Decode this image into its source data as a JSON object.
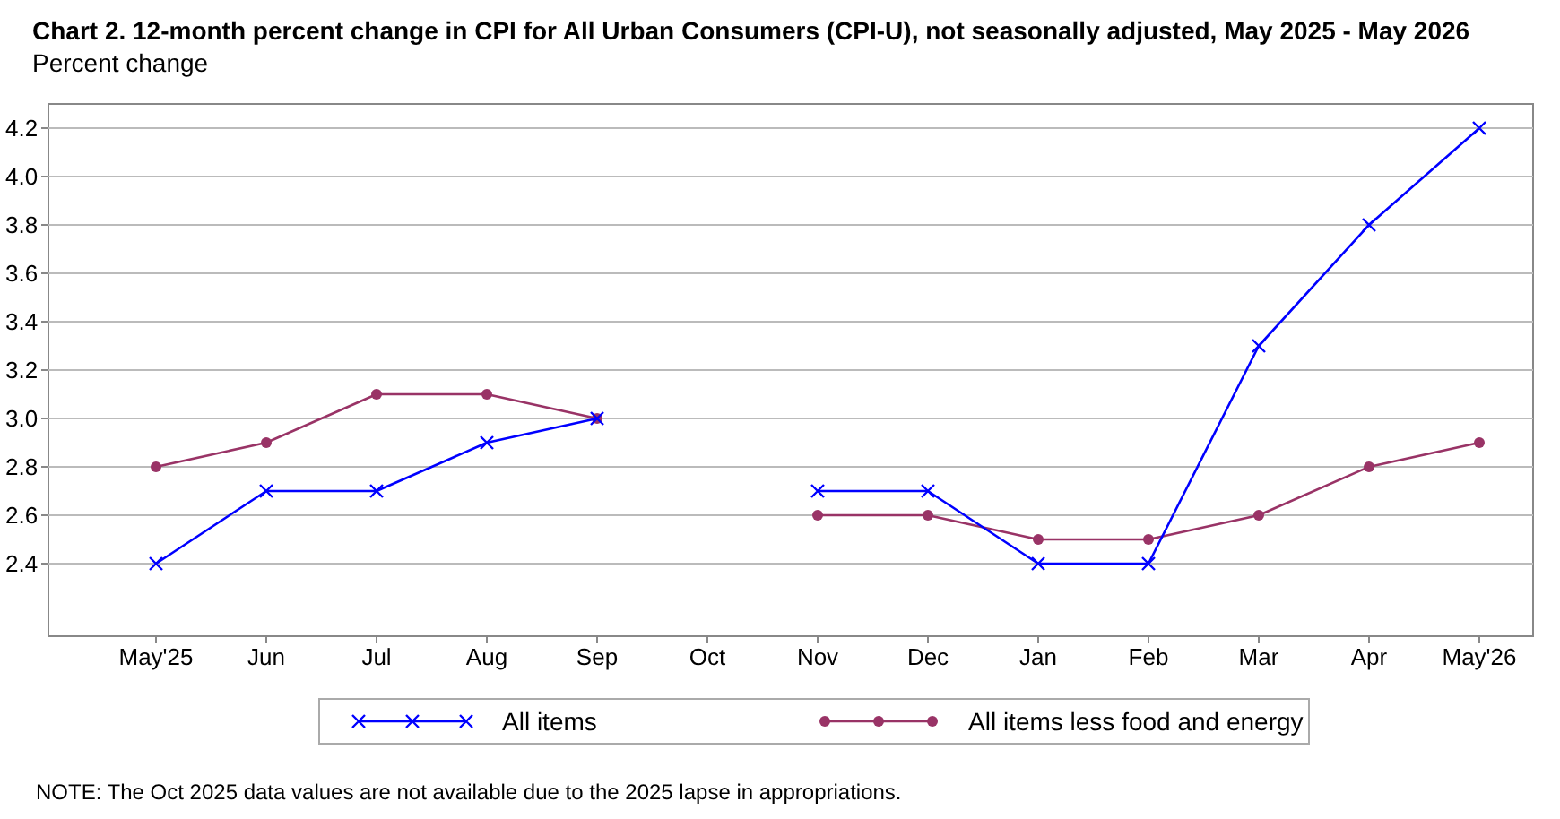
{
  "chart_data": {
    "type": "line",
    "title": "Chart 2. 12-month percent change in CPI for All Urban Consumers (CPI-U), not seasonally adjusted, May 2025 - May 2026",
    "ylabel": "Percent change",
    "categories": [
      "May'25",
      "Jun",
      "Jul",
      "Aug",
      "Sep",
      "Oct",
      "Nov",
      "Dec",
      "Jan",
      "Feb",
      "Mar",
      "Apr",
      "May'26"
    ],
    "series": [
      {
        "name": "All items",
        "color": "#0000ff",
        "marker": "cross",
        "values": [
          2.4,
          2.7,
          2.7,
          2.9,
          3.0,
          null,
          2.7,
          2.7,
          2.4,
          2.4,
          3.3,
          3.8,
          4.2
        ]
      },
      {
        "name": "All items less food and energy",
        "color": "#993366",
        "marker": "circle",
        "values": [
          2.8,
          2.9,
          3.1,
          3.1,
          3.0,
          null,
          2.6,
          2.6,
          2.5,
          2.5,
          2.6,
          2.8,
          2.9
        ]
      }
    ],
    "ylim": [
      2.1,
      4.3
    ],
    "yticks": [
      {
        "value": 2.4,
        "label": "2.4"
      },
      {
        "value": 2.6,
        "label": "2.6"
      },
      {
        "value": 2.8,
        "label": "2.8"
      },
      {
        "value": 3.0,
        "label": "3.0"
      },
      {
        "value": 3.2,
        "label": "3.2"
      },
      {
        "value": 3.4,
        "label": "3.4"
      },
      {
        "value": 3.6,
        "label": "3.6"
      },
      {
        "value": 3.8,
        "label": "3.8"
      },
      {
        "value": 4.0,
        "label": "4.0"
      },
      {
        "value": 4.2,
        "label": "4.2"
      }
    ],
    "grid": "y",
    "legend": "bottom",
    "line_style": "solid",
    "annotations": [
      "NOTE: The Oct 2025 data values are not available due to the 2025 lapse in appropriations."
    ]
  }
}
